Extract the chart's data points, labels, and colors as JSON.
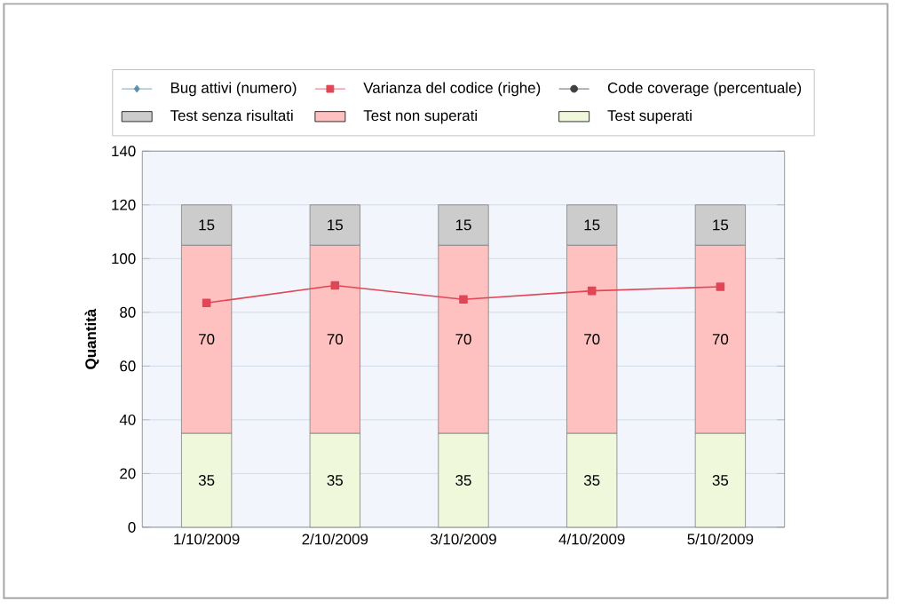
{
  "chart_data": {
    "type": "bar",
    "stacked": true,
    "ylabel": "Quantità",
    "categories": [
      "1/10/2009",
      "2/10/2009",
      "3/10/2009",
      "4/10/2009",
      "5/10/2009"
    ],
    "series": [
      {
        "name": "Test superati",
        "color": "#f0f8dc",
        "values": [
          35,
          35,
          35,
          35,
          35
        ],
        "value_labels": [
          "35",
          "35",
          "35",
          "35",
          "35"
        ]
      },
      {
        "name": "Test non superati",
        "color": "#ffc0c0",
        "values": [
          70,
          70,
          70,
          70,
          70
        ],
        "value_labels": [
          "70",
          "70",
          "70",
          "70",
          "70"
        ]
      },
      {
        "name": "Test senza risultati",
        "color": "#cccccc",
        "values": [
          15,
          15,
          15,
          15,
          15
        ],
        "value_labels": [
          "15",
          "15",
          "15",
          "15",
          "15"
        ]
      },
      {
        "name": "Bug attivi (numero)",
        "type": "line",
        "color": "#5b8fa8",
        "marker": "diamond",
        "values": [
          null,
          null,
          null,
          null,
          null
        ]
      },
      {
        "name": "Varianza del codice (righe)",
        "type": "line",
        "color": "#e04656",
        "marker": "square",
        "values": [
          83.5,
          90,
          84.8,
          88,
          89.5
        ]
      },
      {
        "name": "Code coverage (percentuale)",
        "type": "line",
        "color": "#404040",
        "marker": "circle",
        "values": [
          null,
          null,
          null,
          null,
          null
        ]
      }
    ],
    "ylim": [
      0,
      140
    ],
    "yticks": [
      0,
      20,
      40,
      60,
      80,
      100,
      120,
      140
    ],
    "grid": "y",
    "legend": "top"
  }
}
